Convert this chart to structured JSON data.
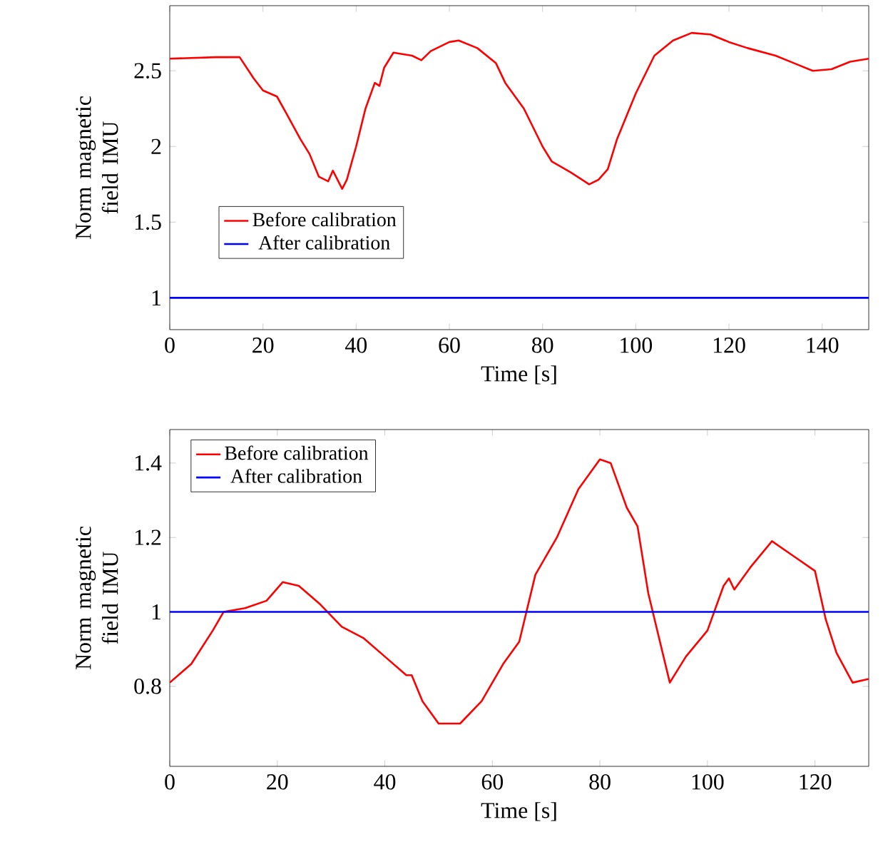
{
  "chart_data": [
    {
      "type": "line",
      "xlabel": "Time [s]",
      "ylabel": "Norm magnetic field IMU",
      "xlim": [
        0,
        150
      ],
      "ylim": [
        0.79,
        2.93
      ],
      "xticks": [
        0,
        20,
        40,
        60,
        80,
        100,
        120,
        140
      ],
      "yticks": [
        1,
        1.5,
        2,
        2.5
      ],
      "legend": "left",
      "grid": false,
      "series": [
        {
          "name": "Before calibration",
          "color": "#ff0000",
          "x": [
            0,
            10,
            15,
            18,
            20,
            23,
            25,
            28,
            30,
            32,
            34,
            35,
            36,
            37,
            38,
            40,
            42,
            44,
            45,
            46,
            48,
            52,
            54,
            56,
            60,
            62,
            66,
            70,
            72,
            76,
            80,
            82,
            86,
            90,
            92,
            94,
            96,
            100,
            104,
            108,
            112,
            116,
            120,
            124,
            130,
            134,
            138,
            142,
            146,
            150
          ],
          "values": [
            2.58,
            2.59,
            2.59,
            2.45,
            2.37,
            2.33,
            2.22,
            2.05,
            1.95,
            1.8,
            1.77,
            1.84,
            1.78,
            1.72,
            1.78,
            2.0,
            2.25,
            2.42,
            2.4,
            2.52,
            2.62,
            2.6,
            2.57,
            2.63,
            2.69,
            2.7,
            2.65,
            2.55,
            2.42,
            2.25,
            2.0,
            1.9,
            1.83,
            1.75,
            1.78,
            1.85,
            2.05,
            2.35,
            2.6,
            2.7,
            2.75,
            2.74,
            2.69,
            2.65,
            2.6,
            2.55,
            2.5,
            2.51,
            2.56,
            2.58
          ]
        },
        {
          "name": "After calibration",
          "color": "#0000ff",
          "x": [
            0,
            20,
            40,
            60,
            80,
            100,
            120,
            150
          ],
          "values": [
            1.0,
            1.0,
            1.0,
            1.0,
            1.0,
            1.0,
            1.0,
            1.0
          ]
        }
      ]
    },
    {
      "type": "line",
      "xlabel": "Time [s]",
      "ylabel": "Norm magnetic field IMU",
      "xlim": [
        0,
        130
      ],
      "ylim": [
        0.585,
        1.49
      ],
      "xticks": [
        0,
        20,
        40,
        60,
        80,
        100,
        120
      ],
      "yticks": [
        0.8,
        1,
        1.2,
        1.4
      ],
      "legend": "top left",
      "grid": false,
      "series": [
        {
          "name": "Before calibration",
          "color": "#ff0000",
          "x": [
            0,
            4,
            8,
            10,
            14,
            18,
            21,
            24,
            28,
            32,
            36,
            40,
            44,
            45,
            47,
            50,
            54,
            58,
            62,
            65,
            68,
            72,
            76,
            80,
            82,
            85,
            87,
            89,
            91,
            93,
            96,
            100,
            103,
            104,
            105,
            108,
            112,
            116,
            120,
            122,
            124,
            127,
            130
          ],
          "values": [
            0.81,
            0.86,
            0.95,
            1.0,
            1.01,
            1.03,
            1.08,
            1.07,
            1.02,
            0.96,
            0.93,
            0.88,
            0.83,
            0.83,
            0.76,
            0.7,
            0.7,
            0.76,
            0.86,
            0.92,
            1.1,
            1.2,
            1.33,
            1.41,
            1.4,
            1.28,
            1.23,
            1.05,
            0.93,
            0.81,
            0.88,
            0.95,
            1.07,
            1.09,
            1.06,
            1.12,
            1.19,
            1.15,
            1.11,
            0.98,
            0.89,
            0.81,
            0.82
          ]
        },
        {
          "name": "After calibration",
          "color": "#0000ff",
          "x": [
            0,
            20,
            40,
            60,
            80,
            100,
            130
          ],
          "values": [
            1.0,
            1.0,
            1.0,
            1.0,
            1.0,
            1.0,
            1.0
          ]
        }
      ]
    }
  ]
}
